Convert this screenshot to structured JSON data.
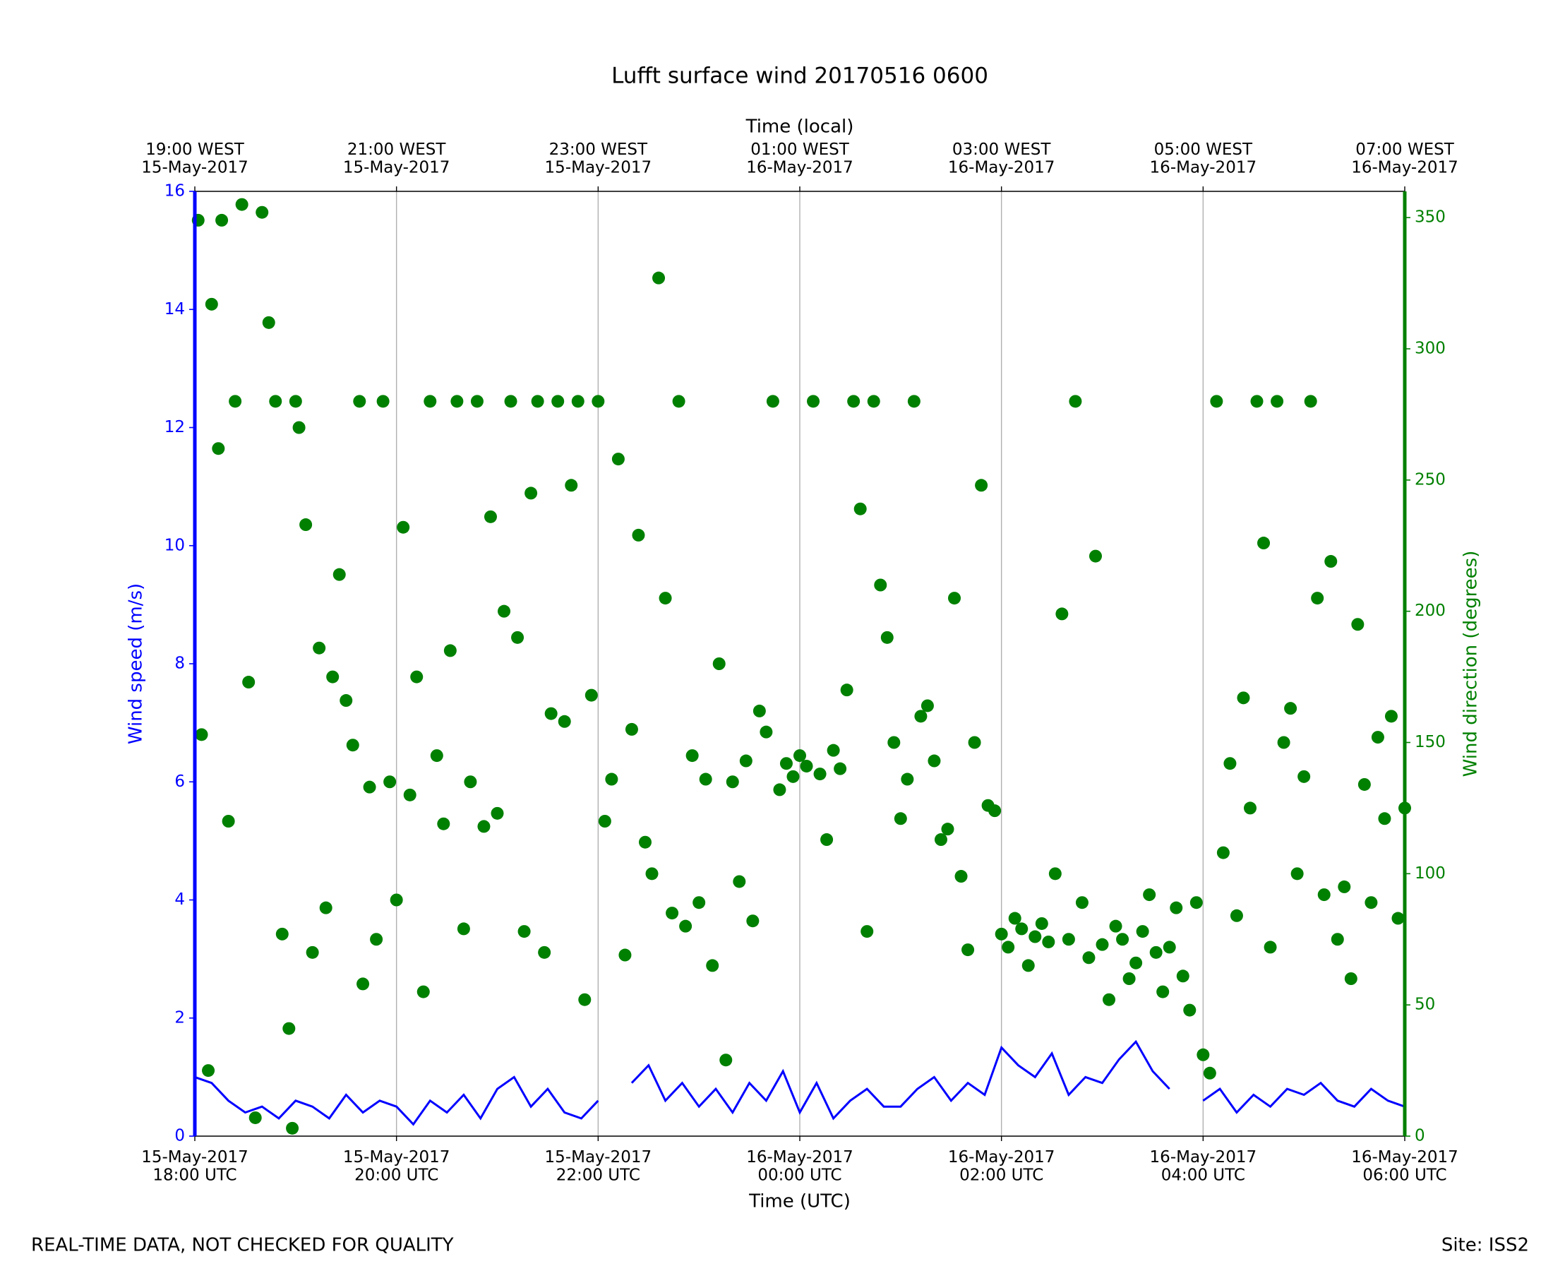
{
  "chart_data": {
    "type": "line",
    "title": "Lufft surface wind 20170516 0600",
    "xlabel": "Time (UTC)",
    "x2label": "Time (local)",
    "ylabel": "Wind speed (m/s)",
    "y2label": "Wind direction (degrees)",
    "footnote_left": "REAL-TIME DATA, NOT CHECKED FOR QUALITY",
    "footnote_right": "Site: ISS2",
    "xlim": [
      "2017-05-15 18:00",
      "2017-05-16 06:00"
    ],
    "xticks": [
      {
        "value": "2017-05-15 18:00",
        "label": "15-May-2017\n18:00 UTC"
      },
      {
        "value": "2017-05-15 20:00",
        "label": "15-May-2017\n20:00 UTC"
      },
      {
        "value": "2017-05-15 22:00",
        "label": "15-May-2017\n22:00 UTC"
      },
      {
        "value": "2017-05-16 00:00",
        "label": "16-May-2017\n00:00 UTC"
      },
      {
        "value": "2017-05-16 02:00",
        "label": "16-May-2017\n02:00 UTC"
      },
      {
        "value": "2017-05-16 04:00",
        "label": "16-May-2017\n04:00 UTC"
      },
      {
        "value": "2017-05-16 06:00",
        "label": "16-May-2017\n06:00 UTC"
      }
    ],
    "x2ticks": [
      {
        "value": "2017-05-15 18:00",
        "label": "19:00 WEST\n15-May-2017"
      },
      {
        "value": "2017-05-15 20:00",
        "label": "21:00 WEST\n15-May-2017"
      },
      {
        "value": "2017-05-15 22:00",
        "label": "23:00 WEST\n15-May-2017"
      },
      {
        "value": "2017-05-16 00:00",
        "label": "01:00 WEST\n16-May-2017"
      },
      {
        "value": "2017-05-16 02:00",
        "label": "03:00 WEST\n16-May-2017"
      },
      {
        "value": "2017-05-16 04:00",
        "label": "05:00 WEST\n16-May-2017"
      },
      {
        "value": "2017-05-16 06:00",
        "label": "07:00 WEST\n16-May-2017"
      }
    ],
    "ylim": [
      0,
      16
    ],
    "yticks": [
      0,
      2,
      4,
      6,
      8,
      10,
      12,
      14,
      16
    ],
    "y2lim": [
      0,
      360
    ],
    "y2ticks": [
      0,
      50,
      100,
      150,
      200,
      250,
      300,
      350
    ],
    "grid": "x",
    "series": [
      {
        "type": "line",
        "color": "#0000ff",
        "x": [
          "2017-05-15 18:00",
          "2017-05-15 18:10",
          "2017-05-15 18:20",
          "2017-05-15 18:30",
          "2017-05-15 18:40",
          "2017-05-15 18:50",
          "2017-05-15 19:00",
          "2017-05-15 19:10",
          "2017-05-15 19:20",
          "2017-05-15 19:30",
          "2017-05-15 19:40",
          "2017-05-15 19:50",
          "2017-05-15 20:00",
          "2017-05-15 20:10",
          "2017-05-15 20:20",
          "2017-05-15 20:30",
          "2017-05-15 20:40",
          "2017-05-15 20:50",
          "2017-05-15 21:00",
          "2017-05-15 21:10",
          "2017-05-15 21:20",
          "2017-05-15 21:30",
          "2017-05-15 21:40",
          "2017-05-15 21:50",
          "2017-05-15 22:00",
          "2017-05-15 22:10",
          "2017-05-15 22:20",
          "2017-05-15 22:30",
          "2017-05-15 22:40",
          "2017-05-15 22:50",
          "2017-05-15 23:00",
          "2017-05-15 23:10",
          "2017-05-15 23:20",
          "2017-05-15 23:30",
          "2017-05-15 23:40",
          "2017-05-15 23:50",
          "2017-05-16 00:00",
          "2017-05-16 00:10",
          "2017-05-16 00:20",
          "2017-05-16 00:30",
          "2017-05-16 00:40",
          "2017-05-16 00:50",
          "2017-05-16 01:00",
          "2017-05-16 01:10",
          "2017-05-16 01:20",
          "2017-05-16 01:30",
          "2017-05-16 01:40",
          "2017-05-16 01:50",
          "2017-05-16 02:00",
          "2017-05-16 02:10",
          "2017-05-16 02:20",
          "2017-05-16 02:30",
          "2017-05-16 02:40",
          "2017-05-16 02:50",
          "2017-05-16 03:00",
          "2017-05-16 03:10",
          "2017-05-16 03:20",
          "2017-05-16 03:30",
          "2017-05-16 03:40",
          "2017-05-16 03:50",
          "2017-05-16 04:00",
          "2017-05-16 04:10",
          "2017-05-16 04:20",
          "2017-05-16 04:30",
          "2017-05-16 04:40",
          "2017-05-16 04:50",
          "2017-05-16 05:00",
          "2017-05-16 05:10",
          "2017-05-16 05:20",
          "2017-05-16 05:30",
          "2017-05-16 05:40",
          "2017-05-16 05:50",
          "2017-05-16 06:00"
        ],
        "values": [
          1.0,
          0.9,
          0.6,
          0.4,
          0.5,
          0.3,
          0.6,
          0.5,
          0.3,
          0.7,
          0.4,
          0.6,
          0.5,
          0.2,
          0.6,
          0.4,
          0.7,
          0.3,
          0.8,
          1.0,
          0.5,
          0.8,
          0.4,
          0.3,
          0.6,
          null,
          0.9,
          1.2,
          0.6,
          0.9,
          0.5,
          0.8,
          0.4,
          0.9,
          0.6,
          1.1,
          0.4,
          0.9,
          0.3,
          0.6,
          0.8,
          0.5,
          0.5,
          0.8,
          1.0,
          0.6,
          0.9,
          0.7,
          1.5,
          1.2,
          1.0,
          1.4,
          0.7,
          1.0,
          0.9,
          1.3,
          1.6,
          1.1,
          0.8,
          null,
          0.6,
          0.8,
          0.4,
          0.7,
          0.5,
          0.8,
          0.7,
          0.9,
          0.6,
          0.5,
          0.8,
          0.6,
          0.5
        ]
      },
      {
        "type": "scatter",
        "color": "#008000",
        "axis": "y2",
        "x": [
          "2017-05-15 18:02",
          "2017-05-15 18:04",
          "2017-05-15 18:08",
          "2017-05-15 18:10",
          "2017-05-15 18:14",
          "2017-05-15 18:16",
          "2017-05-15 18:20",
          "2017-05-15 18:24",
          "2017-05-15 18:28",
          "2017-05-15 18:32",
          "2017-05-15 18:36",
          "2017-05-15 18:40",
          "2017-05-15 18:44",
          "2017-05-15 18:48",
          "2017-05-15 18:52",
          "2017-05-15 18:56",
          "2017-05-15 18:58",
          "2017-05-15 19:00",
          "2017-05-15 19:02",
          "2017-05-15 19:06",
          "2017-05-15 19:10",
          "2017-05-15 19:14",
          "2017-05-15 19:18",
          "2017-05-15 19:22",
          "2017-05-15 19:26",
          "2017-05-15 19:30",
          "2017-05-15 19:34",
          "2017-05-15 19:38",
          "2017-05-15 19:40",
          "2017-05-15 19:44",
          "2017-05-15 19:48",
          "2017-05-15 19:52",
          "2017-05-15 19:56",
          "2017-05-15 20:00",
          "2017-05-15 20:04",
          "2017-05-15 20:08",
          "2017-05-15 20:12",
          "2017-05-15 20:16",
          "2017-05-15 20:20",
          "2017-05-15 20:24",
          "2017-05-15 20:28",
          "2017-05-15 20:32",
          "2017-05-15 20:36",
          "2017-05-15 20:40",
          "2017-05-15 20:44",
          "2017-05-15 20:48",
          "2017-05-15 20:52",
          "2017-05-15 20:56",
          "2017-05-15 21:00",
          "2017-05-15 21:04",
          "2017-05-15 21:08",
          "2017-05-15 21:12",
          "2017-05-15 21:16",
          "2017-05-15 21:20",
          "2017-05-15 21:24",
          "2017-05-15 21:28",
          "2017-05-15 21:32",
          "2017-05-15 21:36",
          "2017-05-15 21:40",
          "2017-05-15 21:44",
          "2017-05-15 21:48",
          "2017-05-15 21:52",
          "2017-05-15 21:56",
          "2017-05-15 22:00",
          "2017-05-15 22:04",
          "2017-05-15 22:08",
          "2017-05-15 22:12",
          "2017-05-15 22:16",
          "2017-05-15 22:20",
          "2017-05-15 22:24",
          "2017-05-15 22:28",
          "2017-05-15 22:32",
          "2017-05-15 22:36",
          "2017-05-15 22:40",
          "2017-05-15 22:44",
          "2017-05-15 22:48",
          "2017-05-15 22:52",
          "2017-05-15 22:56",
          "2017-05-15 23:00",
          "2017-05-15 23:04",
          "2017-05-15 23:08",
          "2017-05-15 23:12",
          "2017-05-15 23:16",
          "2017-05-15 23:20",
          "2017-05-15 23:24",
          "2017-05-15 23:28",
          "2017-05-15 23:32",
          "2017-05-15 23:36",
          "2017-05-15 23:40",
          "2017-05-15 23:44",
          "2017-05-15 23:48",
          "2017-05-15 23:52",
          "2017-05-15 23:56",
          "2017-05-16 00:00",
          "2017-05-16 00:04",
          "2017-05-16 00:08",
          "2017-05-16 00:12",
          "2017-05-16 00:16",
          "2017-05-16 00:20",
          "2017-05-16 00:24",
          "2017-05-16 00:28",
          "2017-05-16 00:32",
          "2017-05-16 00:36",
          "2017-05-16 00:40",
          "2017-05-16 00:44",
          "2017-05-16 00:48",
          "2017-05-16 00:52",
          "2017-05-16 00:56",
          "2017-05-16 01:00",
          "2017-05-16 01:04",
          "2017-05-16 01:08",
          "2017-05-16 01:12",
          "2017-05-16 01:16",
          "2017-05-16 01:20",
          "2017-05-16 01:24",
          "2017-05-16 01:28",
          "2017-05-16 01:32",
          "2017-05-16 01:36",
          "2017-05-16 01:40",
          "2017-05-16 01:44",
          "2017-05-16 01:48",
          "2017-05-16 01:52",
          "2017-05-16 01:56",
          "2017-05-16 02:00",
          "2017-05-16 02:04",
          "2017-05-16 02:08",
          "2017-05-16 02:12",
          "2017-05-16 02:16",
          "2017-05-16 02:20",
          "2017-05-16 02:24",
          "2017-05-16 02:28",
          "2017-05-16 02:32",
          "2017-05-16 02:36",
          "2017-05-16 02:40",
          "2017-05-16 02:44",
          "2017-05-16 02:48",
          "2017-05-16 02:52",
          "2017-05-16 02:56",
          "2017-05-16 03:00",
          "2017-05-16 03:04",
          "2017-05-16 03:08",
          "2017-05-16 03:12",
          "2017-05-16 03:16",
          "2017-05-16 03:20",
          "2017-05-16 03:24",
          "2017-05-16 03:28",
          "2017-05-16 03:32",
          "2017-05-16 03:36",
          "2017-05-16 03:40",
          "2017-05-16 03:44",
          "2017-05-16 03:48",
          "2017-05-16 03:52",
          "2017-05-16 03:56",
          "2017-05-16 04:00",
          "2017-05-16 04:04",
          "2017-05-16 04:08",
          "2017-05-16 04:12",
          "2017-05-16 04:16",
          "2017-05-16 04:20",
          "2017-05-16 04:24",
          "2017-05-16 04:28",
          "2017-05-16 04:32",
          "2017-05-16 04:36",
          "2017-05-16 04:40",
          "2017-05-16 04:44",
          "2017-05-16 04:48",
          "2017-05-16 04:52",
          "2017-05-16 04:56",
          "2017-05-16 05:00",
          "2017-05-16 05:04",
          "2017-05-16 05:08",
          "2017-05-16 05:12",
          "2017-05-16 05:16",
          "2017-05-16 05:20",
          "2017-05-16 05:24",
          "2017-05-16 05:28",
          "2017-05-16 05:32",
          "2017-05-16 05:36",
          "2017-05-16 05:40",
          "2017-05-16 05:44",
          "2017-05-16 05:48",
          "2017-05-16 05:52",
          "2017-05-16 05:56",
          "2017-05-16 06:00"
        ],
        "values": [
          349,
          153,
          25,
          317,
          262,
          349,
          120,
          280,
          355,
          173,
          7,
          352,
          310,
          280,
          77,
          41,
          3,
          280,
          270,
          233,
          70,
          186,
          87,
          175,
          214,
          166,
          149,
          280,
          58,
          133,
          75,
          280,
          135,
          90,
          232,
          130,
          175,
          55,
          280,
          145,
          119,
          185,
          280,
          79,
          135,
          280,
          118,
          236,
          123,
          200,
          280,
          190,
          78,
          245,
          280,
          70,
          161,
          280,
          158,
          248,
          280,
          52,
          168,
          280,
          120,
          136,
          258,
          69,
          155,
          229,
          112,
          100,
          327,
          205,
          85,
          280,
          80,
          145,
          89,
          136,
          65,
          180,
          29,
          135,
          97,
          143,
          82,
          162,
          154,
          280,
          132,
          142,
          137,
          145,
          141,
          280,
          138,
          113,
          147,
          140,
          170,
          280,
          239,
          78,
          280,
          210,
          190,
          150,
          121,
          136,
          280,
          160,
          164,
          143,
          113,
          117,
          205,
          99,
          71,
          150,
          248,
          126,
          124,
          77,
          72,
          83,
          79,
          65,
          76,
          81,
          74,
          100,
          199,
          75,
          280,
          89,
          68,
          221,
          73,
          52,
          80,
          75,
          60,
          66,
          78,
          92,
          70,
          55,
          72,
          87,
          61,
          48,
          89,
          31,
          24,
          280,
          108,
          142,
          84,
          167,
          125,
          280,
          226,
          72,
          280,
          150,
          163,
          100,
          137,
          280,
          205,
          92,
          219,
          75,
          95,
          60,
          195,
          134,
          89,
          152,
          121,
          160,
          83,
          125
        ]
      }
    ]
  }
}
